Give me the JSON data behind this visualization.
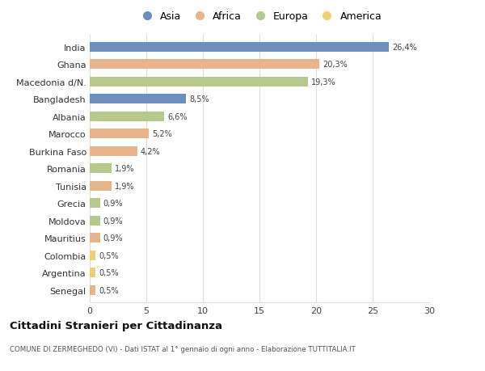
{
  "countries": [
    "India",
    "Ghana",
    "Macedonia d/N.",
    "Bangladesh",
    "Albania",
    "Marocco",
    "Burkina Faso",
    "Romania",
    "Tunisia",
    "Grecia",
    "Moldova",
    "Mauritius",
    "Colombia",
    "Argentina",
    "Senegal"
  ],
  "values": [
    26.4,
    20.3,
    19.3,
    8.5,
    6.6,
    5.2,
    4.2,
    1.9,
    1.9,
    0.9,
    0.9,
    0.9,
    0.5,
    0.5,
    0.5
  ],
  "labels": [
    "26,4%",
    "20,3%",
    "19,3%",
    "8,5%",
    "6,6%",
    "5,2%",
    "4,2%",
    "1,9%",
    "1,9%",
    "0,9%",
    "0,9%",
    "0,9%",
    "0,5%",
    "0,5%",
    "0,5%"
  ],
  "continents": [
    "Asia",
    "Africa",
    "Europa",
    "Asia",
    "Europa",
    "Africa",
    "Africa",
    "Europa",
    "Africa",
    "Europa",
    "Europa",
    "Africa",
    "America",
    "America",
    "Africa"
  ],
  "continent_colors": {
    "Asia": "#6a8fbf",
    "Africa": "#e8b48a",
    "Europa": "#b5c98a",
    "America": "#f0d070"
  },
  "legend_order": [
    "Asia",
    "Africa",
    "Europa",
    "America"
  ],
  "title": "Cittadini Stranieri per Cittadinanza",
  "subtitle": "COMUNE DI ZERMEGHEDO (VI) - Dati ISTAT al 1° gennaio di ogni anno - Elaborazione TUTTITALIA.IT",
  "xlim": [
    0,
    30
  ],
  "xticks": [
    0,
    5,
    10,
    15,
    20,
    25,
    30
  ],
  "background_color": "#ffffff",
  "grid_color": "#dddddd",
  "bar_height": 0.55
}
